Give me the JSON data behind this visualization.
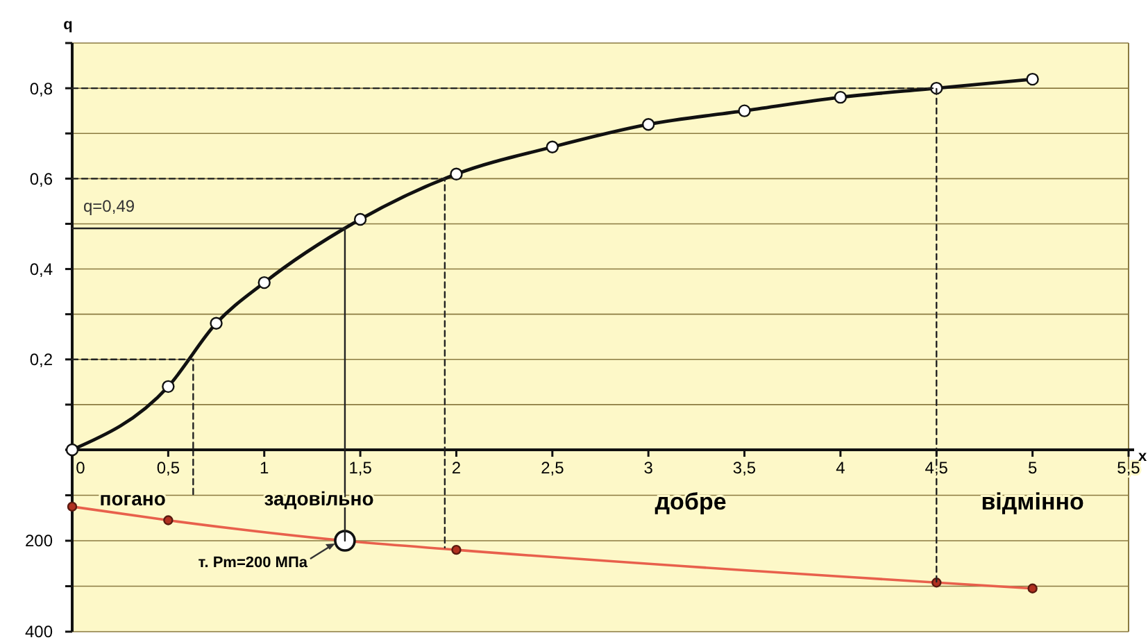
{
  "chart_data": [
    {
      "type": "line",
      "ylabel": "q",
      "xlabel": "x",
      "xlim": [
        0,
        5.5
      ],
      "ylim": [
        0,
        0.9
      ],
      "xticks": [
        {
          "value": 0,
          "label": "0"
        },
        {
          "value": 0.5,
          "label": "0,5"
        },
        {
          "value": 1,
          "label": "1"
        },
        {
          "value": 1.5,
          "label": "1,5"
        },
        {
          "value": 2,
          "label": "2"
        },
        {
          "value": 2.5,
          "label": "2,5"
        },
        {
          "value": 3,
          "label": "3"
        },
        {
          "value": 3.5,
          "label": "3,5"
        },
        {
          "value": 4,
          "label": "4"
        },
        {
          "value": 4.5,
          "label": "4,5"
        },
        {
          "value": 5,
          "label": "5"
        },
        {
          "value": 5.5,
          "label": "5,5"
        }
      ],
      "yticks": [
        {
          "value": 0,
          "label": null
        },
        {
          "value": 0.1,
          "label": null
        },
        {
          "value": 0.2,
          "label": "0,2"
        },
        {
          "value": 0.3,
          "label": null
        },
        {
          "value": 0.4,
          "label": "0,4"
        },
        {
          "value": 0.5,
          "label": null
        },
        {
          "value": 0.6,
          "label": "0,6"
        },
        {
          "value": 0.7,
          "label": null
        },
        {
          "value": 0.8,
          "label": "0,8"
        },
        {
          "value": 0.9,
          "label": null
        }
      ],
      "grid": "y",
      "series": [
        {
          "color": "#111111",
          "marker": "circle",
          "line_style": "solid",
          "x": [
            0,
            0.5,
            0.75,
            1,
            1.5,
            2,
            2.5,
            3,
            3.5,
            4,
            4.5,
            5
          ],
          "values": [
            0,
            0.14,
            0.28,
            0.37,
            0.51,
            0.61,
            0.67,
            0.72,
            0.75,
            0.78,
            0.8,
            0.82
          ]
        },
        {
          "color": "#222222",
          "marker": "none",
          "line_style": "solid",
          "x": [
            0,
            1.42,
            1.42
          ],
          "values": [
            0.49,
            0.49,
            0
          ]
        },
        {
          "color": "#222222",
          "marker": "none",
          "line_style": "dashed",
          "x": [
            0,
            0.63,
            0.63
          ],
          "values": [
            0.2,
            0.2,
            0
          ]
        },
        {
          "color": "#222222",
          "marker": "none",
          "line_style": "dashed",
          "x": [
            0,
            1.94,
            1.94
          ],
          "values": [
            0.6,
            0.6,
            0
          ]
        },
        {
          "color": "#222222",
          "marker": "none",
          "line_style": "dashed",
          "x": [
            0,
            4.5,
            4.5
          ],
          "values": [
            0.8,
            0.8,
            0
          ]
        }
      ],
      "annotations": [
        {
          "text": "q=0,49",
          "x": 0,
          "y": 0.49
        }
      ]
    },
    {
      "type": "line",
      "xlim": [
        0,
        5.5
      ],
      "ylim": [
        400,
        0
      ],
      "tick_labels": "y",
      "yticks": [
        {
          "value": 0,
          "label": null
        },
        {
          "value": 100,
          "label": null
        },
        200,
        {
          "value": 300,
          "label": null
        },
        400
      ],
      "grid": "y",
      "series": [
        {
          "color": "#e8604c",
          "marker": "circle",
          "line_style": "solid",
          "x": [
            0,
            0.5,
            1.42,
            2,
            4.5,
            5
          ],
          "values": [
            125,
            155,
            200,
            220,
            292,
            305
          ]
        },
        {
          "type": "scatter",
          "color": "#111111",
          "marker": "circle",
          "x": [
            1.42
          ],
          "values": [
            200
          ]
        },
        {
          "color": "#222222",
          "marker": "none",
          "line_style": "solid",
          "x": [
            1.42,
            1.42
          ],
          "values": [
            0,
            200
          ]
        },
        {
          "color": "#222222",
          "marker": "none",
          "line_style": "dashed",
          "x": [
            0.63,
            0.63
          ],
          "values": [
            0,
            100
          ]
        },
        {
          "color": "#222222",
          "marker": "none",
          "line_style": "dashed",
          "x": [
            1.94,
            1.94
          ],
          "values": [
            0,
            215
          ]
        },
        {
          "color": "#222222",
          "marker": "none",
          "line_style": "dashed",
          "x": [
            4.5,
            4.5
          ],
          "values": [
            0,
            290
          ]
        }
      ],
      "annotations": [
        "погано",
        "задовільно",
        "добре",
        "відмінно",
        {
          "text": "т. Pm=200 МПа",
          "x": 1.42,
          "y": 200
        }
      ]
    }
  ]
}
